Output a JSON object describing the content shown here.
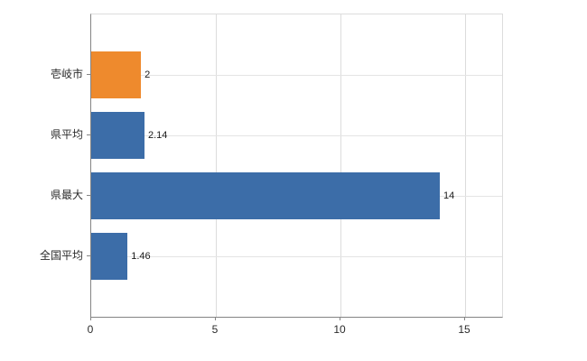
{
  "chart_data": {
    "type": "bar",
    "orientation": "horizontal",
    "title": "",
    "categories": [
      "壱岐市",
      "県平均",
      "県最大",
      "全国平均"
    ],
    "values": [
      2,
      2.14,
      14,
      1.46
    ],
    "value_labels": [
      "2",
      "2.14",
      "14",
      "1.46"
    ],
    "bar_colors": [
      "#ee8a2d",
      "#3c6da8",
      "#3c6da8",
      "#3c6da8"
    ],
    "xlim": [
      0,
      16.5
    ],
    "xticks": [
      0,
      5,
      10,
      15
    ],
    "grid": true,
    "legend": false,
    "colors": {
      "axis": "#848484",
      "gridline": "#dcdcdc",
      "background": "#ffffff",
      "label_text": "#2b2b2b"
    }
  }
}
